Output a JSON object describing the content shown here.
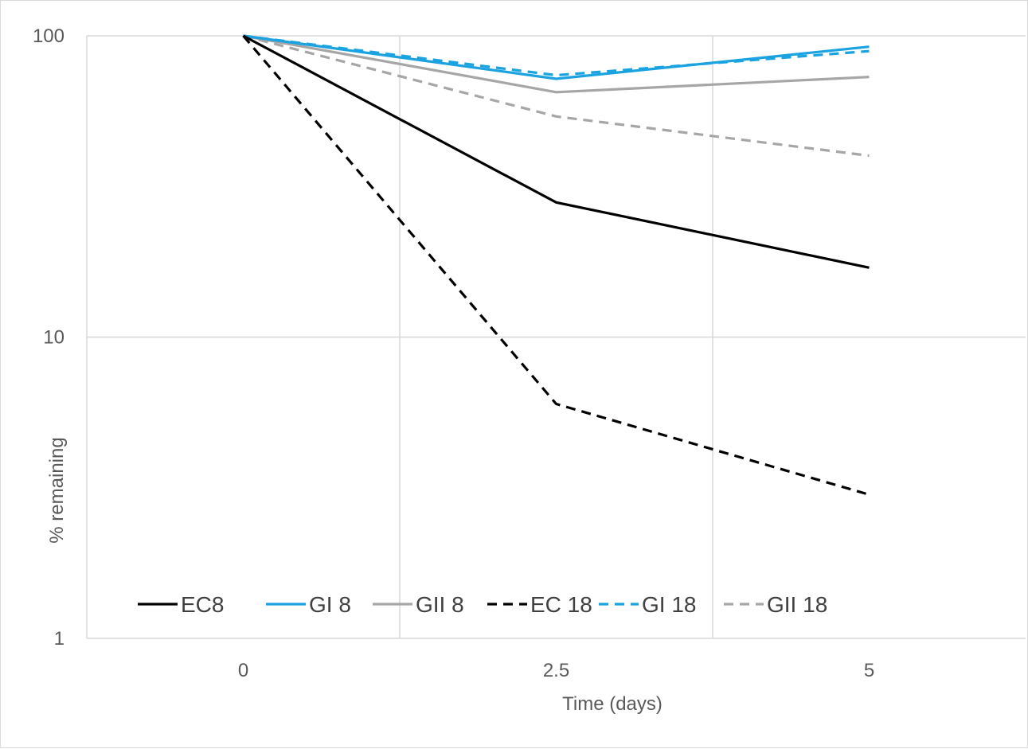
{
  "chart_data": {
    "type": "line",
    "title": "",
    "xlabel": "Time (days)",
    "ylabel": "% remaining",
    "x": [
      0,
      2.5,
      5
    ],
    "x_tick_labels": [
      "0",
      "2.5",
      "5"
    ],
    "xlim": [
      -1.25,
      6.25
    ],
    "x_gridlines": [
      1.25,
      3.75
    ],
    "yscale": "log",
    "ylim": [
      1,
      100
    ],
    "y_tick_values": [
      1,
      10,
      100
    ],
    "y_tick_labels": [
      "1",
      "10",
      "100"
    ],
    "grid": true,
    "legend_position": "bottom-left, inside plot area",
    "series": [
      {
        "name": "EC8",
        "values": [
          100,
          28,
          17
        ],
        "color": "#000000",
        "dash": "solid"
      },
      {
        "name": "GI 8",
        "values": [
          100,
          72,
          92
        ],
        "color": "#1aa3e0",
        "dash": "solid"
      },
      {
        "name": "GII 8",
        "values": [
          100,
          65,
          73
        ],
        "color": "#a6a6a6",
        "dash": "solid"
      },
      {
        "name": "EC 18",
        "values": [
          100,
          6,
          3
        ],
        "color": "#000000",
        "dash": "dashed"
      },
      {
        "name": "GI 18",
        "values": [
          100,
          74,
          89
        ],
        "color": "#1aa3e0",
        "dash": "dashed"
      },
      {
        "name": "GII 18",
        "values": [
          100,
          54,
          40
        ],
        "color": "#a6a6a6",
        "dash": "dashed"
      }
    ]
  }
}
